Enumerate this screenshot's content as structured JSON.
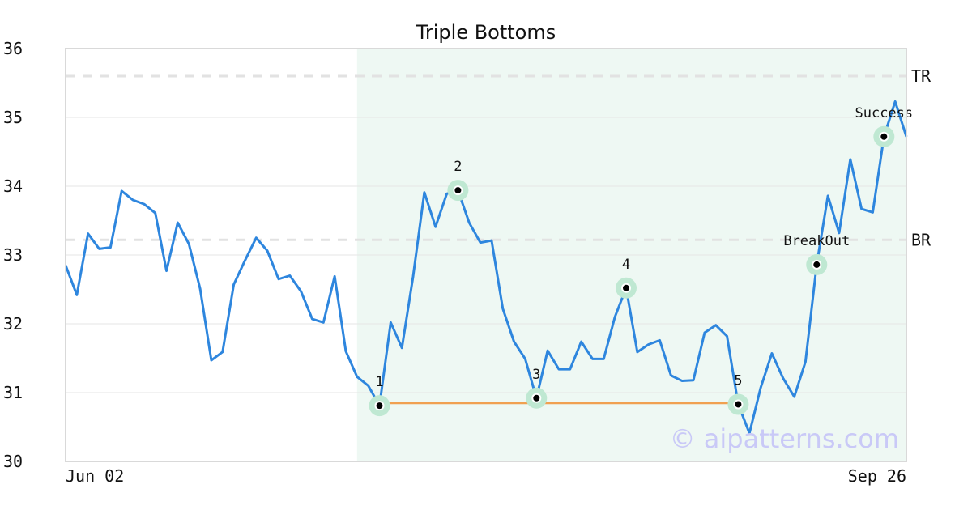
{
  "chart_data": {
    "type": "line",
    "title": "Triple Bottoms",
    "xlabel": "",
    "ylabel": "",
    "ylim": [
      30,
      36
    ],
    "y_ticks": [
      30,
      31,
      32,
      33,
      34,
      35,
      36
    ],
    "x_tick_labels": [
      "Jun 02",
      "Sep 26"
    ],
    "grid": true,
    "series": [
      {
        "color": "#2e86de",
        "values": [
          32.85,
          32.42,
          33.31,
          33.09,
          33.11,
          33.93,
          33.8,
          33.74,
          33.61,
          32.77,
          33.47,
          33.16,
          32.51,
          31.47,
          31.59,
          32.57,
          32.92,
          33.25,
          33.06,
          32.65,
          32.7,
          32.47,
          32.07,
          32.02,
          32.69,
          31.6,
          31.23,
          31.1,
          30.81,
          32.02,
          31.65,
          32.69,
          33.91,
          33.41,
          33.89,
          33.94,
          33.47,
          33.18,
          33.21,
          32.22,
          31.74,
          31.49,
          30.92,
          31.61,
          31.34,
          31.34,
          31.74,
          31.49,
          31.49,
          32.1,
          32.52,
          31.59,
          31.7,
          31.76,
          31.25,
          31.17,
          31.18,
          31.87,
          31.98,
          31.82,
          30.83,
          30.41,
          31.07,
          31.57,
          31.21,
          30.94,
          31.45,
          32.86,
          33.86,
          33.32,
          34.39,
          33.67,
          33.62,
          34.72,
          35.23,
          34.72
        ]
      }
    ],
    "pattern_region": {
      "start_index": 26,
      "end_index": 75,
      "color": "#eef8f3"
    },
    "reference_lines": [
      {
        "label": "TR",
        "value": 35.6,
        "color": "#e2e2e2"
      },
      {
        "label": "BR",
        "value": 33.22,
        "color": "#e2e2e2"
      }
    ],
    "support_line": {
      "start_index": 28,
      "end_index": 60,
      "value": 30.85,
      "color": "#f0a050"
    },
    "points": [
      {
        "label": "1",
        "index": 28,
        "value": 30.81
      },
      {
        "label": "2",
        "index": 35,
        "value": 33.94
      },
      {
        "label": "3",
        "index": 42,
        "value": 30.92
      },
      {
        "label": "4",
        "index": 50,
        "value": 32.52
      },
      {
        "label": "5",
        "index": 60,
        "value": 30.83
      },
      {
        "label": "BreakOut",
        "index": 67,
        "value": 32.86
      },
      {
        "label": "Success",
        "index": 73,
        "value": 34.72
      }
    ],
    "point_style": {
      "halo": "#bfe8d2",
      "dot": "#000000"
    }
  },
  "watermark": "© aipatterns.com"
}
